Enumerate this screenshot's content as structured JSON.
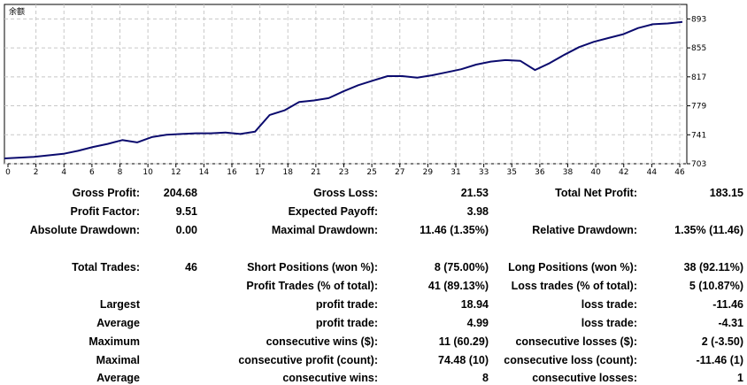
{
  "chart_data": {
    "type": "line",
    "title": "余额",
    "xlabel": "",
    "ylabel": "",
    "x_ticks": [
      "0",
      "2",
      "4",
      "6",
      "8",
      "10",
      "12",
      "14",
      "16",
      "17",
      "18",
      "21",
      "23",
      "25",
      "27",
      "29",
      "31",
      "33",
      "35",
      "36",
      "38",
      "40",
      "42",
      "44",
      "46"
    ],
    "y_ticks": [
      "703",
      "741",
      "779",
      "817",
      "855",
      "893"
    ],
    "ylim": [
      703,
      912
    ],
    "xlim": [
      0,
      46.3
    ],
    "grid": true,
    "series": [
      {
        "name": "",
        "color": "#0b0b6e",
        "x": [
          0,
          1,
          2,
          3,
          4,
          5,
          6,
          7,
          8,
          9,
          10,
          11,
          12,
          13,
          14,
          15,
          16,
          17,
          18,
          19,
          20,
          21,
          22,
          23,
          24,
          25,
          26,
          27,
          28,
          29,
          30,
          31,
          32,
          33,
          34,
          35,
          36,
          37,
          38,
          39,
          40,
          41,
          42,
          43,
          44,
          45,
          46
        ],
        "y": [
          710,
          711,
          712,
          714,
          716,
          720,
          725,
          729,
          734,
          731,
          738,
          741,
          742,
          743,
          743,
          744,
          742,
          745,
          767,
          773,
          784,
          786,
          789,
          798,
          806,
          812,
          818,
          818,
          816,
          819,
          823,
          827,
          833,
          837,
          839,
          838,
          826,
          835,
          846,
          856,
          863,
          868,
          873,
          881,
          886,
          887,
          889
        ]
      }
    ]
  },
  "stats": {
    "gross_profit_label": "Gross Profit:",
    "gross_profit_value": "204.68",
    "gross_loss_label": "Gross Loss:",
    "gross_loss_value": "21.53",
    "total_net_profit_label": "Total Net Profit:",
    "total_net_profit_value": "183.15",
    "profit_factor_label": "Profit Factor:",
    "profit_factor_value": "9.51",
    "expected_payoff_label": "Expected Payoff:",
    "expected_payoff_value": "3.98",
    "absolute_drawdown_label": "Absolute Drawdown:",
    "absolute_drawdown_value": "0.00",
    "maximal_drawdown_label": "Maximal Drawdown:",
    "maximal_drawdown_value": "11.46 (1.35%)",
    "relative_drawdown_label": "Relative Drawdown:",
    "relative_drawdown_value": "1.35% (11.46)",
    "total_trades_label": "Total Trades:",
    "total_trades_value": "46",
    "short_positions_label": "Short Positions (won %):",
    "short_positions_value": "8 (75.00%)",
    "long_positions_label": "Long Positions (won %):",
    "long_positions_value": "38 (92.11%)",
    "profit_trades_label": "Profit Trades (% of total):",
    "profit_trades_value": "41 (89.13%)",
    "loss_trades_label": "Loss trades (% of total):",
    "loss_trades_value": "5 (10.87%)",
    "largest_label": "Largest",
    "largest_profit_label": "profit trade:",
    "largest_profit_value": "18.94",
    "largest_loss_label": "loss trade:",
    "largest_loss_value": "-11.46",
    "average_label": "Average",
    "average_profit_label": "profit trade:",
    "average_profit_value": "4.99",
    "average_loss_label": "loss trade:",
    "average_loss_value": "-4.31",
    "maximum_label": "Maximum",
    "max_cons_wins_label": "consecutive wins ($):",
    "max_cons_wins_value": "11 (60.29)",
    "max_cons_losses_label": "consecutive losses ($):",
    "max_cons_losses_value": "2 (-3.50)",
    "maximal_label": "Maximal",
    "maximal_cons_profit_label": "consecutive profit (count):",
    "maximal_cons_profit_value": "74.48 (10)",
    "maximal_cons_loss_label": "consecutive loss (count):",
    "maximal_cons_loss_value": "-11.46 (1)",
    "average2_label": "Average",
    "avg_cons_wins_label": "consecutive wins:",
    "avg_cons_wins_value": "8",
    "avg_cons_losses_label": "consecutive losses:",
    "avg_cons_losses_value": "1"
  }
}
